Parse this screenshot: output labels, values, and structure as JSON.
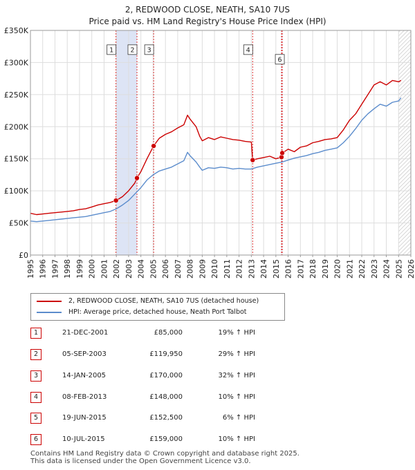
{
  "title": "2, REDWOOD CLOSE, NEATH, SA10 7US",
  "subtitle": "Price paid vs. HM Land Registry's House Price Index (HPI)",
  "chart_data": {
    "type": "line",
    "title": "2, REDWOOD CLOSE, NEATH, SA10 7US",
    "xlim": [
      1995,
      2026
    ],
    "ylim": [
      0,
      350000
    ],
    "x_ticks": [
      "1995",
      "1996",
      "1997",
      "1998",
      "1999",
      "2000",
      "2001",
      "2002",
      "2003",
      "2004",
      "2005",
      "2006",
      "2007",
      "2008",
      "2009",
      "2010",
      "2011",
      "2012",
      "2013",
      "2014",
      "2015",
      "2016",
      "2017",
      "2018",
      "2019",
      "2020",
      "2021",
      "2022",
      "2023",
      "2024",
      "2025",
      "2026"
    ],
    "y_ticks": [
      {
        "value": 0,
        "label": "£0"
      },
      {
        "value": 50000,
        "label": "£50K"
      },
      {
        "value": 100000,
        "label": "£100K"
      },
      {
        "value": 150000,
        "label": "£150K"
      },
      {
        "value": 200000,
        "label": "£200K"
      },
      {
        "value": 250000,
        "label": "£250K"
      },
      {
        "value": 300000,
        "label": "£300K"
      },
      {
        "value": 350000,
        "label": "£350K"
      }
    ],
    "grid": true,
    "colors": {
      "property": "#cc0000",
      "hpi": "#5b8ccc",
      "band": "#dde4f5",
      "marker_line": "#dd3333"
    },
    "series": [
      {
        "name": "2, REDWOOD CLOSE, NEATH, SA10 7US (detached house)",
        "color": "#cc0000",
        "x": [
          1995.0,
          1995.5,
          1996.0,
          1996.5,
          1997.0,
          1997.5,
          1998.0,
          1998.5,
          1999.0,
          1999.5,
          2000.0,
          2000.5,
          2001.0,
          2001.5,
          2001.97,
          2002.5,
          2003.0,
          2003.5,
          2003.68,
          2004.0,
          2004.5,
          2005.04,
          2005.5,
          2006.0,
          2006.5,
          2007.0,
          2007.5,
          2007.8,
          2008.0,
          2008.5,
          2008.8,
          2009.0,
          2009.5,
          2010.0,
          2010.5,
          2011.0,
          2011.5,
          2012.0,
          2012.5,
          2013.0,
          2013.11,
          2013.5,
          2014.0,
          2014.5,
          2015.0,
          2015.46,
          2015.52,
          2016.0,
          2016.5,
          2017.0,
          2017.5,
          2018.0,
          2018.5,
          2019.0,
          2019.5,
          2020.0,
          2020.5,
          2021.0,
          2021.5,
          2022.0,
          2022.5,
          2023.0,
          2023.5,
          2024.0,
          2024.5,
          2025.0,
          2025.2
        ],
        "values": [
          65000,
          63000,
          64000,
          65000,
          66000,
          67000,
          68000,
          69000,
          71000,
          72000,
          75000,
          78000,
          80000,
          82000,
          85000,
          91000,
          100000,
          112000,
          119950,
          130000,
          150000,
          170000,
          182000,
          188000,
          192000,
          198000,
          203000,
          218000,
          212000,
          200000,
          185000,
          178000,
          183000,
          180000,
          184000,
          182000,
          180000,
          179000,
          177000,
          176000,
          148000,
          150000,
          152000,
          154000,
          150000,
          152500,
          159000,
          165000,
          161000,
          168000,
          170000,
          175000,
          177000,
          180000,
          181000,
          183000,
          195000,
          210000,
          220000,
          235000,
          250000,
          265000,
          270000,
          265000,
          272000,
          270000,
          272000
        ]
      },
      {
        "name": "HPI: Average price, detached house, Neath Port Talbot",
        "color": "#5b8ccc",
        "x": [
          1995.0,
          1995.5,
          1996.0,
          1996.5,
          1997.0,
          1997.5,
          1998.0,
          1998.5,
          1999.0,
          1999.5,
          2000.0,
          2000.5,
          2001.0,
          2001.5,
          2002.0,
          2002.5,
          2003.0,
          2003.5,
          2004.0,
          2004.5,
          2005.0,
          2005.5,
          2006.0,
          2006.5,
          2007.0,
          2007.5,
          2007.8,
          2008.0,
          2008.5,
          2008.8,
          2009.0,
          2009.5,
          2010.0,
          2010.5,
          2011.0,
          2011.5,
          2012.0,
          2012.5,
          2013.0,
          2013.5,
          2014.0,
          2014.5,
          2015.0,
          2015.5,
          2016.0,
          2016.5,
          2017.0,
          2017.5,
          2018.0,
          2018.5,
          2019.0,
          2019.5,
          2020.0,
          2020.5,
          2021.0,
          2021.5,
          2022.0,
          2022.5,
          2023.0,
          2023.5,
          2024.0,
          2024.5,
          2025.0,
          2025.2
        ],
        "values": [
          53000,
          52000,
          53000,
          54000,
          55000,
          56000,
          57000,
          58000,
          59000,
          60000,
          62000,
          64000,
          66000,
          68000,
          72000,
          78000,
          85000,
          95000,
          105000,
          117000,
          125000,
          131000,
          134000,
          137000,
          142000,
          147000,
          160000,
          155000,
          145000,
          137000,
          132000,
          136000,
          135000,
          137000,
          136000,
          134000,
          135000,
          134000,
          134000,
          137000,
          139000,
          141000,
          143000,
          145000,
          148000,
          151000,
          153000,
          155000,
          158000,
          160000,
          163000,
          165000,
          167000,
          175000,
          185000,
          197000,
          210000,
          220000,
          228000,
          235000,
          232000,
          238000,
          240000,
          245000
        ]
      }
    ],
    "transactions": [
      {
        "num": "1",
        "date": "21-DEC-2001",
        "x": 2001.97,
        "price_value": 85000,
        "price": "£85,000",
        "hpi": "19% ↑ HPI"
      },
      {
        "num": "2",
        "date": "05-SEP-2003",
        "x": 2003.68,
        "price_value": 119950,
        "price": "£119,950",
        "hpi": "29% ↑ HPI"
      },
      {
        "num": "3",
        "date": "14-JAN-2005",
        "x": 2005.04,
        "price_value": 170000,
        "price": "£170,000",
        "hpi": "32% ↑ HPI"
      },
      {
        "num": "4",
        "date": "08-FEB-2013",
        "x": 2013.11,
        "price_value": 148000,
        "price": "£148,000",
        "hpi": "10% ↑ HPI"
      },
      {
        "num": "5",
        "date": "19-JUN-2015",
        "x": 2015.46,
        "price_value": 152500,
        "price": "£152,500",
        "hpi": "6% ↑ HPI"
      },
      {
        "num": "6",
        "date": "10-JUL-2015",
        "x": 2015.52,
        "price_value": 159000,
        "price": "£159,000",
        "hpi": "10% ↑ HPI"
      }
    ],
    "shaded_ranges": [
      [
        2001.97,
        2003.68
      ],
      [
        2015.46,
        2015.52
      ]
    ],
    "forecast_from": 2025.0,
    "label_values": [
      320000,
      305000
    ]
  },
  "legend": {
    "property_label": "2, REDWOOD CLOSE, NEATH, SA10 7US (detached house)",
    "hpi_label": "HPI: Average price, detached house, Neath Port Talbot"
  },
  "footer": {
    "line1": "Contains HM Land Registry data © Crown copyright and database right 2025.",
    "line2": "This data is licensed under the Open Government Licence v3.0."
  }
}
